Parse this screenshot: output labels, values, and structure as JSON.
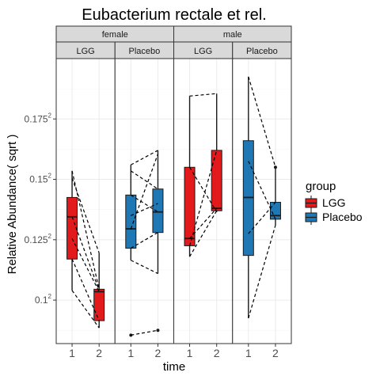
{
  "chart_data": {
    "type": "box",
    "title": "Eubacterium rectale et rel.",
    "xlabel": "time",
    "ylabel": "Relative Abundance( sqrt )",
    "y_ticks": [
      {
        "value": 0.1,
        "base": "0.1",
        "exp": "2"
      },
      {
        "value": 0.125,
        "base": "0.125",
        "exp": "2"
      },
      {
        "value": 0.15,
        "base": "0.15",
        "exp": "2"
      },
      {
        "value": 0.175,
        "base": "0.175",
        "exp": "2"
      }
    ],
    "ylim": [
      0.082,
      0.2
    ],
    "x_categories": [
      "1",
      "2"
    ],
    "grid": true,
    "legend": {
      "title": "group",
      "position": "right",
      "entries": [
        {
          "label": "LGG",
          "color": "#e31a1c"
        },
        {
          "label": "Placebo",
          "color": "#1f78b4"
        }
      ]
    },
    "strips_top": [
      "female",
      "male"
    ],
    "strips_second": [
      "LGG",
      "Placebo",
      "LGG",
      "Placebo"
    ],
    "panels": [
      {
        "sex": "female",
        "group": "LGG",
        "color": "#e31a1c",
        "boxes": [
          {
            "x": "1",
            "min": 0.104,
            "q1": 0.117,
            "median": 0.1345,
            "q3": 0.1425,
            "max": 0.1535,
            "outliers": []
          },
          {
            "x": "2",
            "min": 0.0885,
            "q1": 0.0915,
            "median": 0.1035,
            "q3": 0.1045,
            "max": 0.1195,
            "outliers": []
          }
        ],
        "pairs": [
          [
            0.1535,
            0.1045
          ],
          [
            0.1505,
            0.1195
          ],
          [
            0.1345,
            0.104
          ],
          [
            0.1255,
            0.1035
          ],
          [
            0.117,
            0.0915
          ],
          [
            0.104,
            0.0885
          ]
        ]
      },
      {
        "sex": "female",
        "group": "Placebo",
        "color": "#1f78b4",
        "boxes": [
          {
            "x": "1",
            "min": 0.1165,
            "q1": 0.1215,
            "median": 0.1295,
            "q3": 0.1435,
            "max": 0.156,
            "outliers": [
              0.0855
            ]
          },
          {
            "x": "2",
            "min": 0.111,
            "q1": 0.128,
            "median": 0.1365,
            "q3": 0.146,
            "max": 0.162,
            "outliers": [
              0.0875
            ]
          }
        ],
        "pairs": [
          [
            0.156,
            0.162
          ],
          [
            0.1535,
            0.146
          ],
          [
            0.1435,
            0.1365
          ],
          [
            0.135,
            0.14
          ],
          [
            0.1295,
            0.1605
          ],
          [
            0.1215,
            0.128
          ],
          [
            0.1165,
            0.111
          ],
          [
            0.0855,
            0.0875
          ]
        ]
      },
      {
        "sex": "male",
        "group": "LGG",
        "color": "#e31a1c",
        "boxes": [
          {
            "x": "1",
            "min": 0.118,
            "q1": 0.1225,
            "median": 0.1255,
            "q3": 0.155,
            "max": 0.1845,
            "outliers": []
          },
          {
            "x": "2",
            "min": 0.1365,
            "q1": 0.137,
            "median": 0.138,
            "q3": 0.162,
            "max": 0.1855,
            "outliers": []
          }
        ],
        "pairs": [
          [
            0.1845,
            0.1855
          ],
          [
            0.155,
            0.1365
          ],
          [
            0.1255,
            0.138
          ],
          [
            0.1225,
            0.162
          ],
          [
            0.118,
            0.137
          ]
        ]
      },
      {
        "sex": "male",
        "group": "Placebo",
        "color": "#1f78b4",
        "boxes": [
          {
            "x": "1",
            "min": 0.0925,
            "q1": 0.1185,
            "median": 0.1425,
            "q3": 0.166,
            "max": 0.1925,
            "outliers": []
          },
          {
            "x": "2",
            "min": 0.131,
            "q1": 0.1335,
            "median": 0.135,
            "q3": 0.1405,
            "max": 0.155,
            "outliers": [
              0.155
            ]
          }
        ],
        "pairs": [
          [
            0.1925,
            0.155
          ],
          [
            0.1575,
            0.1335
          ],
          [
            0.1275,
            0.1405
          ],
          [
            0.0925,
            0.131
          ]
        ]
      }
    ]
  }
}
